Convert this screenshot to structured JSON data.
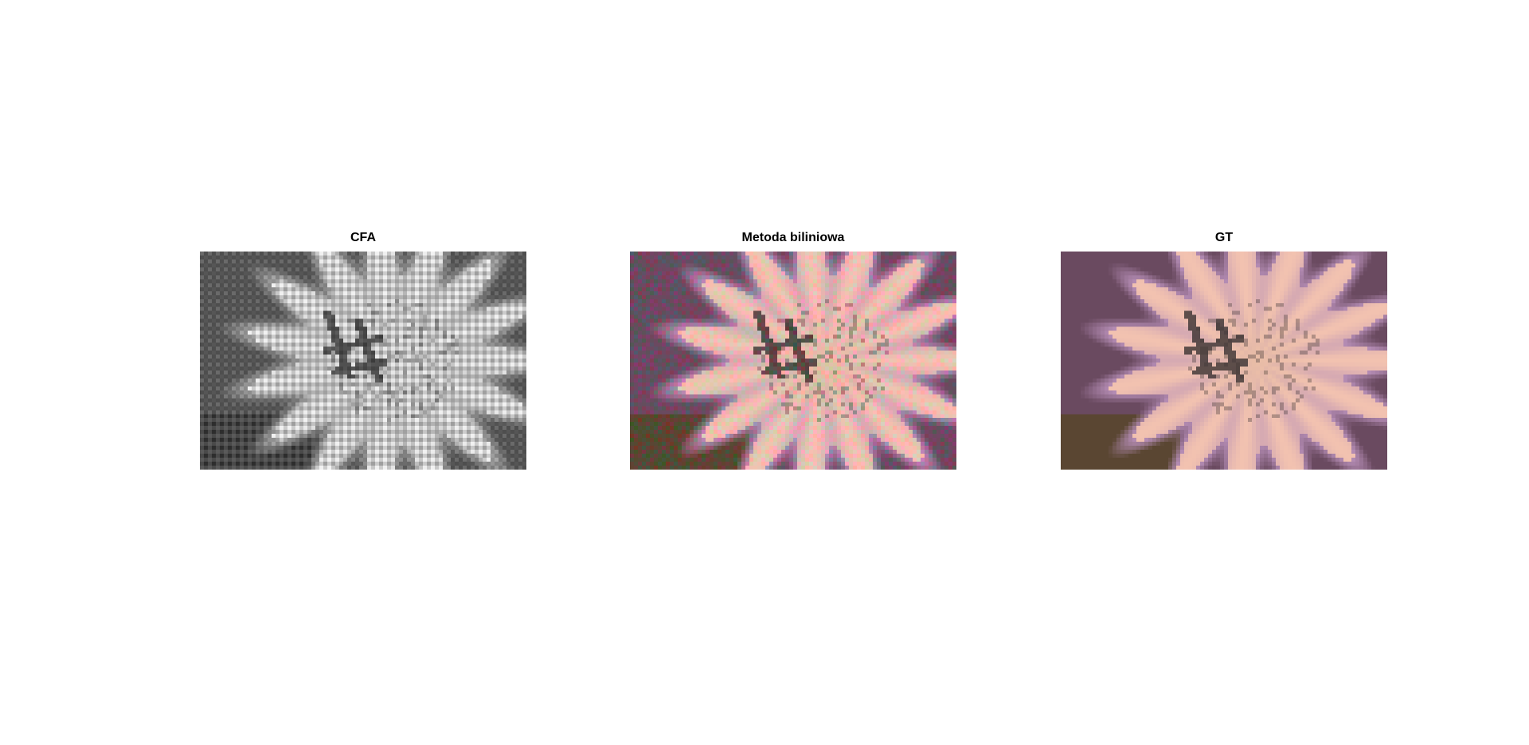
{
  "figure": {
    "panels": [
      {
        "id": "cfa",
        "title": "CFA",
        "kind": "bayer-mosaic-grayscale"
      },
      {
        "id": "bilinear",
        "title": "Metoda biliniowa",
        "kind": "demosaiced-color-with-artifacts"
      },
      {
        "id": "gt",
        "title": "GT",
        "kind": "ground-truth-color"
      }
    ],
    "colors": {
      "petal": "#f2c2b0",
      "petal_shadow": "#b48cb4",
      "center": "#e8bca6",
      "stamen_dark": "#3a3232",
      "background_dark": "#5a4632",
      "background_purple": "#6a4a60"
    }
  }
}
